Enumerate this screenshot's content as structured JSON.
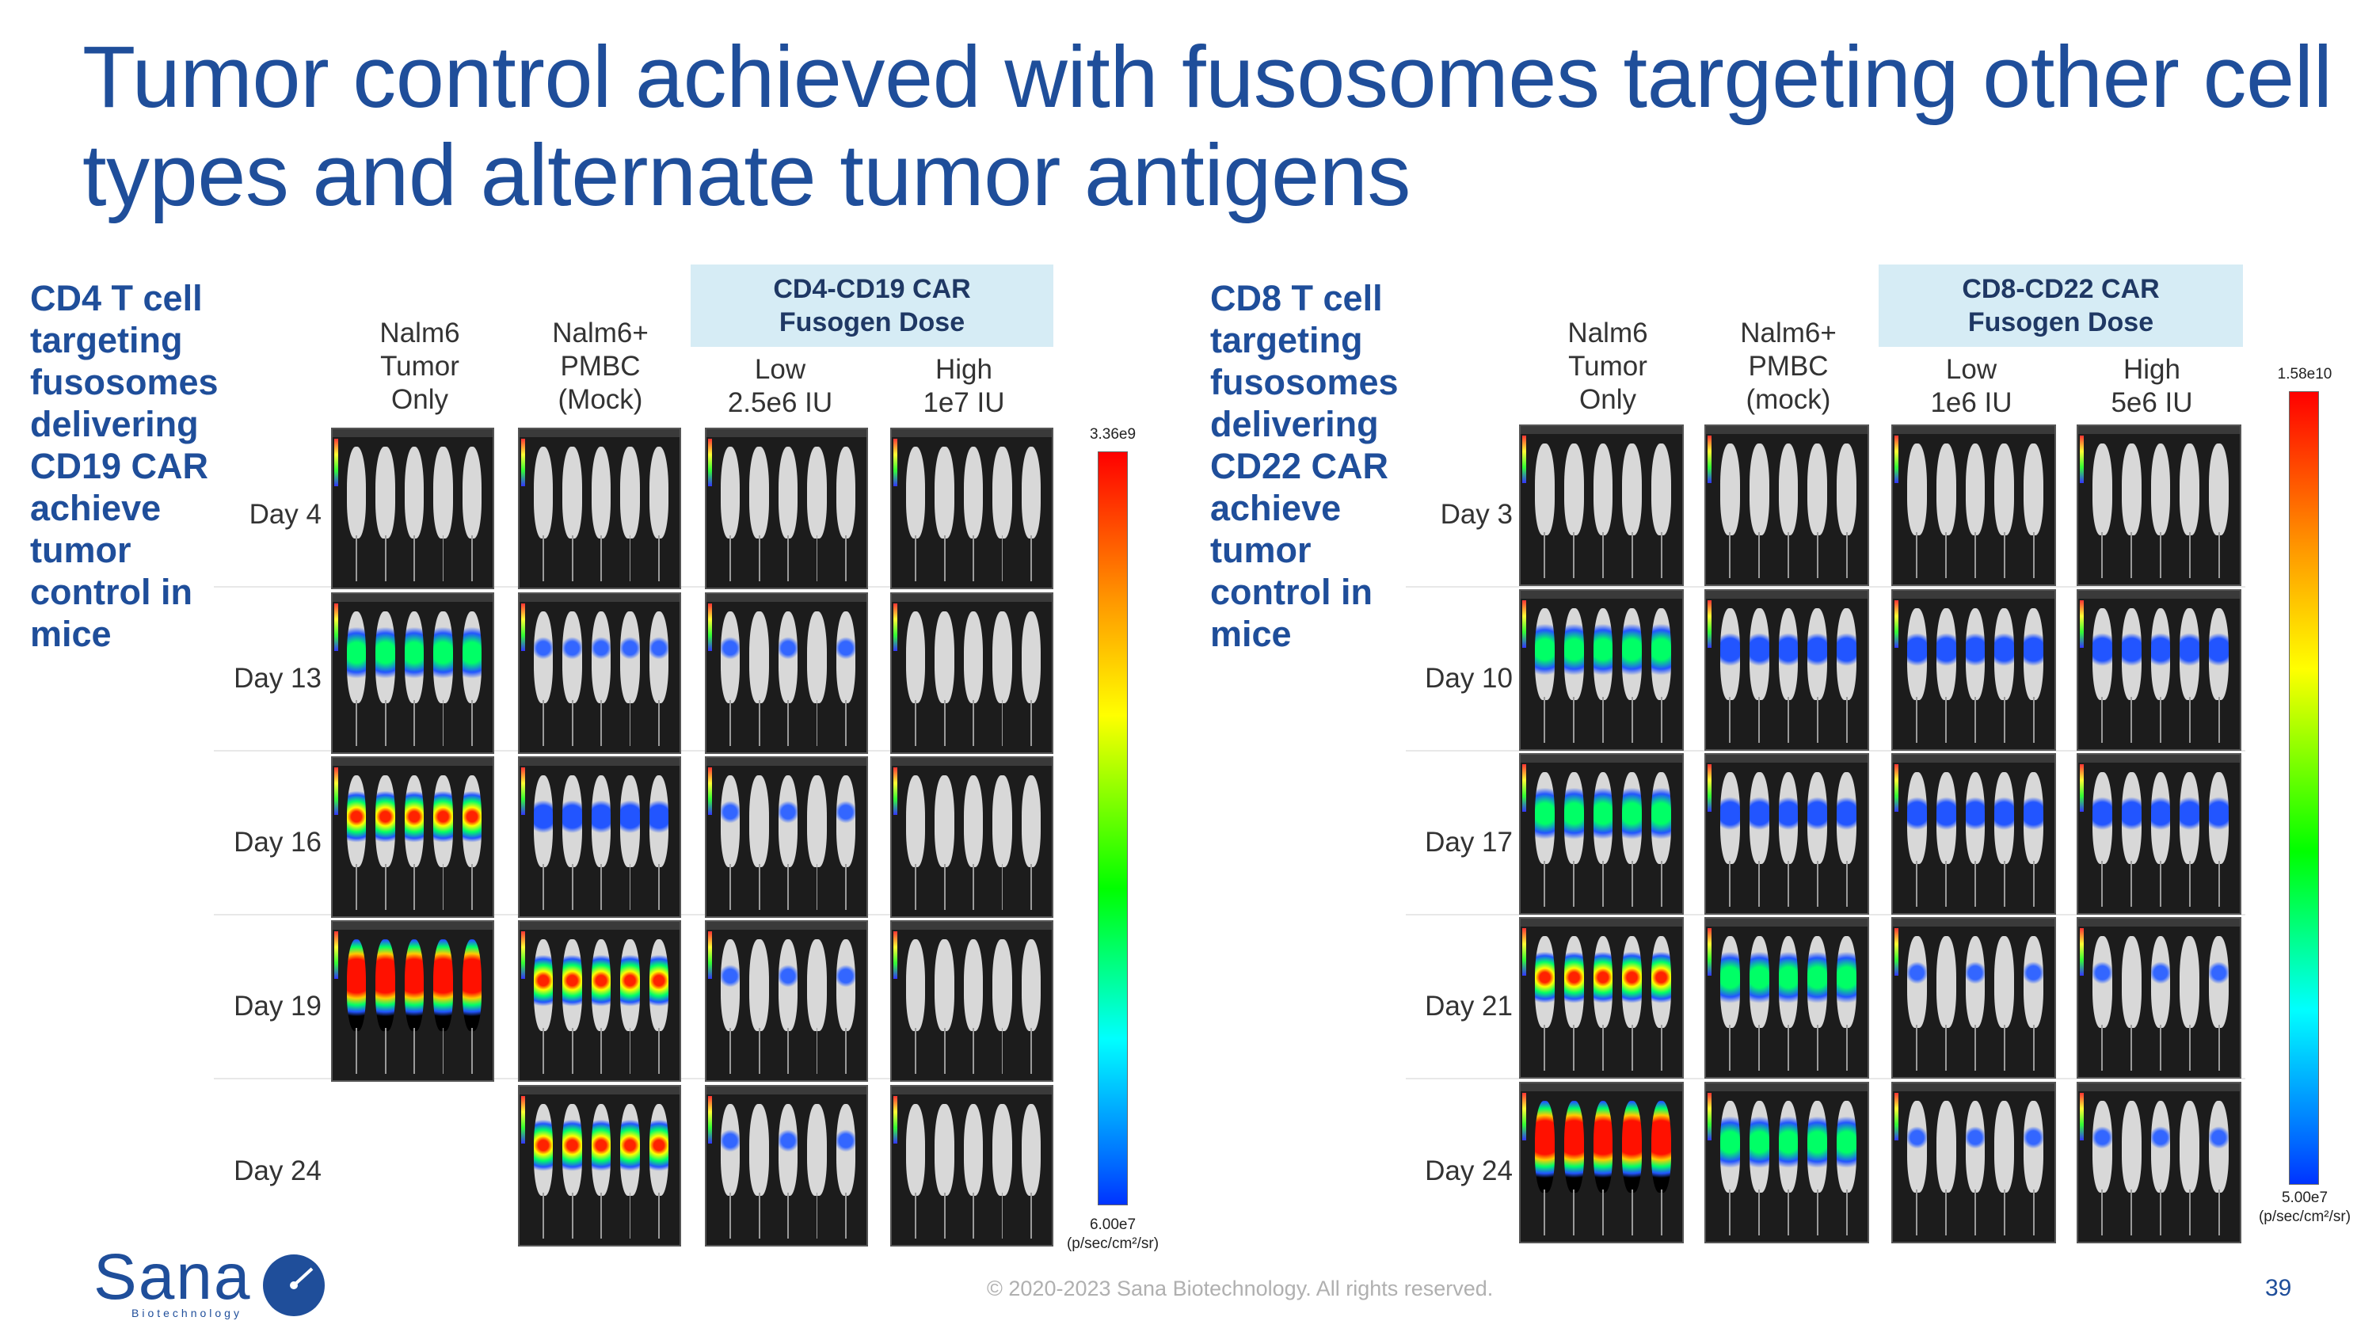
{
  "title": "Tumor control achieved with fusosomes targeting other cell types and alternate tumor antigens",
  "left": {
    "description_lines": [
      "CD4 T cell",
      "targeting",
      "fusosomes",
      "delivering",
      "CD19 CAR",
      "achieve",
      "tumor",
      "control in",
      "mice"
    ],
    "columns": [
      "Nalm6\nTumor\nOnly",
      "Nalm6+\nPMBC\n(Mock)",
      "Low\n2.5e6 IU",
      "High\n1e7 IU"
    ],
    "group_header": "CD4-CD19 CAR\nFusogen Dose",
    "days": [
      "Day 4",
      "Day 13",
      "Day 16",
      "Day 19",
      "Day 24"
    ],
    "colorbar_max": "3.36e9",
    "colorbar_min": "6.00e7",
    "colorbar_unit": "(p/sec/cm²/sr)"
  },
  "right": {
    "description_lines": [
      "CD8 T cell",
      "targeting",
      "fusosomes",
      "delivering",
      "CD22 CAR",
      "achieve",
      "tumor",
      "control in",
      "mice"
    ],
    "columns": [
      "Nalm6\nTumor\nOnly",
      "Nalm6+\nPMBC\n(mock)",
      "Low\n1e6 IU",
      "High\n5e6 IU"
    ],
    "group_header": "CD8-CD22 CAR\nFusogen Dose",
    "days": [
      "Day 3",
      "Day 10",
      "Day 17",
      "Day 21",
      "Day 24"
    ],
    "colorbar_max": "1.58e10",
    "colorbar_min": "5.00e7",
    "colorbar_unit": "(p/sec/cm²/sr)"
  },
  "footer": "© 2020-2023 Sana Biotechnology. All rights reserved.",
  "page_number": "39",
  "logo": {
    "name": "Sana",
    "sub": "Biotechnology"
  },
  "colors": {
    "brand_blue": "#1f4e9a",
    "group_box": "#d6ecf5"
  }
}
